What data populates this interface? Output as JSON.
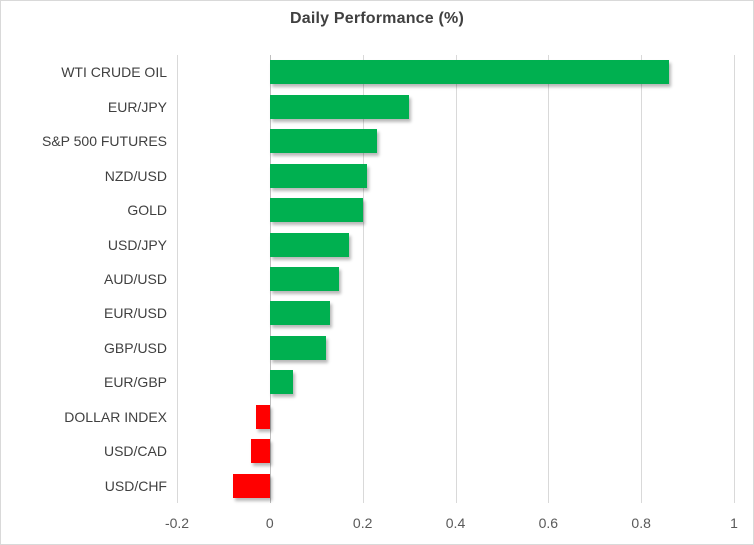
{
  "chart_data": {
    "type": "bar",
    "orientation": "horizontal",
    "title": "Daily Performance (%)",
    "categories": [
      "WTI CRUDE OIL",
      "EUR/JPY",
      "S&P 500 FUTURES",
      "NZD/USD",
      "GOLD",
      "USD/JPY",
      "AUD/USD",
      "EUR/USD",
      "GBP/USD",
      "EUR/GBP",
      "DOLLAR INDEX",
      "USD/CAD",
      "USD/CHF"
    ],
    "values": [
      0.86,
      0.3,
      0.23,
      0.21,
      0.2,
      0.17,
      0.15,
      0.13,
      0.12,
      0.05,
      -0.03,
      -0.04,
      -0.08
    ],
    "xlim": [
      -0.2,
      1.0
    ],
    "x_ticks": [
      -0.2,
      0,
      0.2,
      0.4,
      0.6,
      0.8,
      1
    ],
    "x_tick_labels": [
      "-0.2",
      "0",
      "0.2",
      "0.4",
      "0.6",
      "0.8",
      "1"
    ],
    "grid": true,
    "legend": "none",
    "colors": {
      "positive": "#00B050",
      "negative": "#FF0000",
      "gridline": "#D9D9D9",
      "axis_line": "#BFBFBF",
      "title_text": "#404040",
      "label_text": "#404040",
      "tick_text": "#595959",
      "border": "#D9D9D9",
      "background": "#FFFFFF"
    }
  }
}
